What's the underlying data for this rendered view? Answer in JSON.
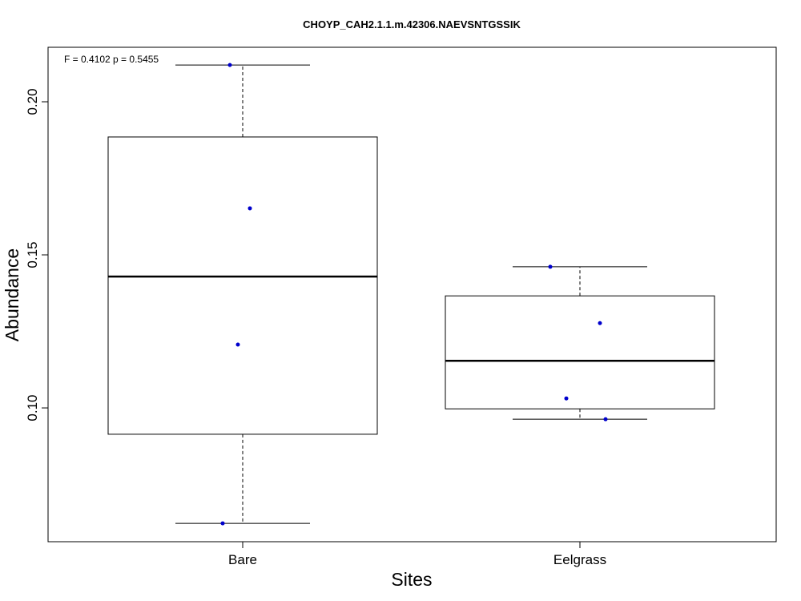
{
  "chart_data": {
    "type": "box",
    "title": "CHOYP_CAH2.1.1.m.42306.NAEVSNTGSSIK",
    "annotation": "F = 0.4102 p = 0.5455",
    "x_label": "Sites",
    "y_label": "Abundance",
    "categories": [
      "Bare",
      "Eelgrass"
    ],
    "boxes": [
      {
        "min": 0.0623,
        "q1": 0.0914,
        "median": 0.1429,
        "q3": 0.1885,
        "max": 0.212,
        "points": [
          0.212,
          0.1652,
          0.1207,
          0.0623
        ]
      },
      {
        "min": 0.0963,
        "q1": 0.0997,
        "median": 0.1154,
        "q3": 0.1366,
        "max": 0.1461,
        "points": [
          0.1461,
          0.1277,
          0.1031,
          0.0963
        ]
      }
    ],
    "point_color": "#0000cc",
    "ylim": [
      0.0563,
      0.2178
    ],
    "yticks": [
      {
        "value": 0.1,
        "label": "0.10"
      },
      0.15,
      {
        "value": 0.2,
        "label": "0.20"
      }
    ]
  }
}
